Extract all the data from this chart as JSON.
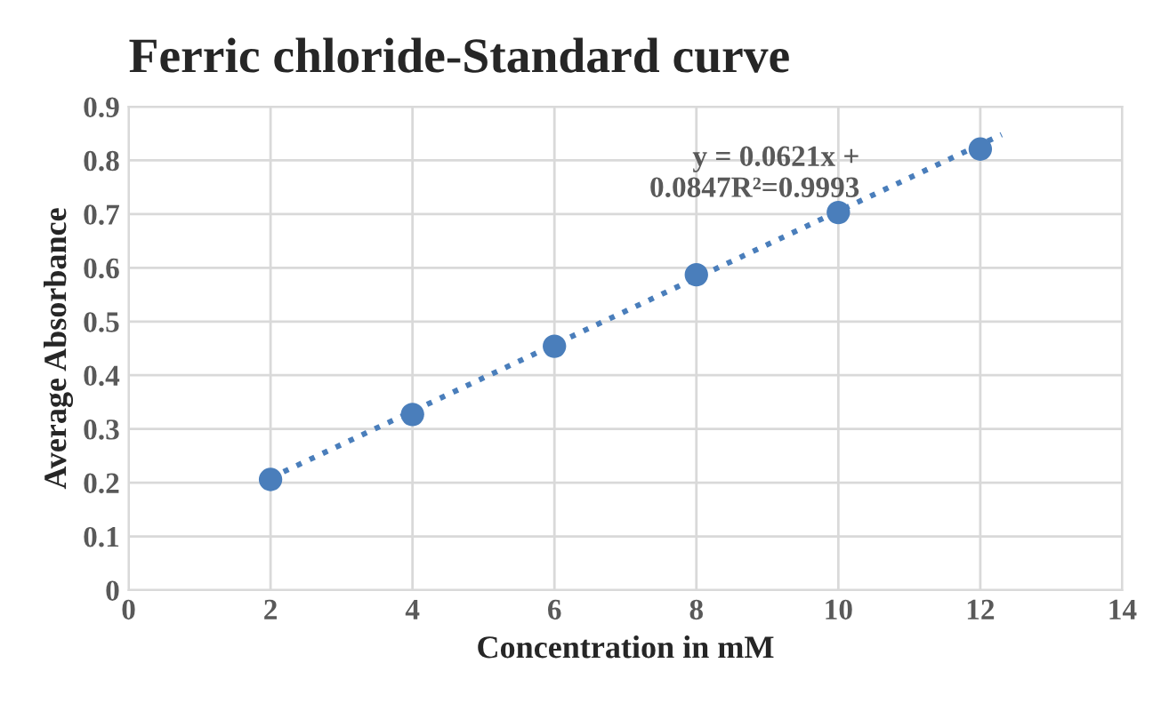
{
  "chart_data": {
    "type": "scatter",
    "title": "Ferric chloride-Standard curve",
    "xlabel": "Concentration in mM",
    "ylabel": "Average Absorbance",
    "x": [
      2,
      4,
      6,
      8,
      10,
      12
    ],
    "series": [
      {
        "color": "#4a7ebb",
        "marker": "circle",
        "values": [
          0.206,
          0.327,
          0.454,
          0.587,
          0.703,
          0.821
        ]
      },
      {
        "type": "line",
        "color": "#4a7ebb",
        "line_style": "dotted",
        "marker": "none",
        "x": [
          2,
          12.3
        ],
        "values": [
          0.209,
          0.848
        ]
      }
    ],
    "annotations": [
      "y = 0.0621x +\n0.0847R²=0.9993"
    ],
    "xlim": [
      0,
      14
    ],
    "xticks": [
      0,
      2,
      4,
      6,
      8,
      10,
      12,
      14
    ],
    "ylim": [
      0,
      0.9
    ],
    "yticks": [
      0,
      0.1,
      0.2,
      0.3,
      0.4,
      0.5,
      0.6,
      0.7,
      0.8,
      0.9
    ],
    "grid": true,
    "legend": false
  }
}
